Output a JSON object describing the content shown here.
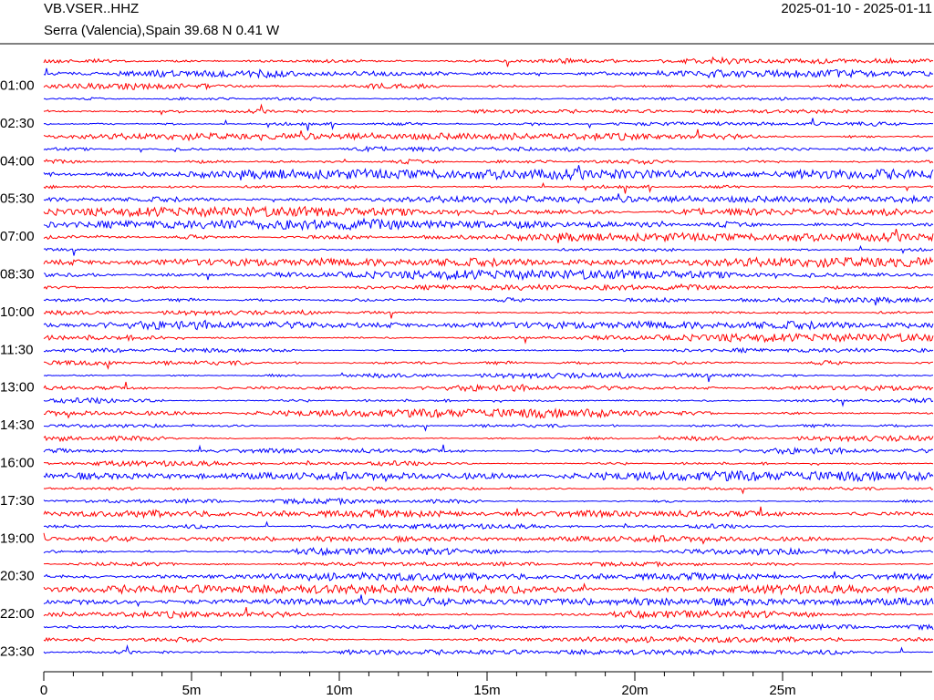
{
  "chart_data": {
    "type": "helicorder",
    "title": "VB.VSER..HHZ",
    "subtitle": "Serra (Valencia),Spain  39.68 N 0.41 W",
    "date_range": "2025-01-10 - 2025-01-11",
    "xlim": [
      0,
      30
    ],
    "xticks": [
      0,
      {
        "value": 5,
        "label": "5m"
      },
      {
        "value": 10,
        "label": "10m"
      },
      {
        "value": 15,
        "label": "15m"
      },
      {
        "value": 20,
        "label": "20m"
      },
      {
        "value": 25,
        "label": "25m"
      }
    ],
    "xminor_step": 1,
    "ylim": [
      0,
      23.5
    ],
    "trace_interval_hours": 0.5,
    "yticks": [
      {
        "value": 1,
        "label": "01:00"
      },
      {
        "value": 2.5,
        "label": "02:30"
      },
      {
        "value": 4,
        "label": "04:00"
      },
      {
        "value": 5.5,
        "label": "05:30"
      },
      {
        "value": 7,
        "label": "07:00"
      },
      {
        "value": 8.5,
        "label": "08:30"
      },
      {
        "value": 10,
        "label": "10:00"
      },
      {
        "value": 11.5,
        "label": "11:30"
      },
      {
        "value": 13,
        "label": "13:00"
      },
      {
        "value": 14.5,
        "label": "14:30"
      },
      {
        "value": 16,
        "label": "16:00"
      },
      {
        "value": 17.5,
        "label": "17:30"
      },
      {
        "value": 19,
        "label": "19:00"
      },
      {
        "value": 20.5,
        "label": "20:30"
      },
      {
        "value": 22,
        "label": "22:00"
      },
      {
        "value": 23.5,
        "label": "23:30"
      }
    ],
    "colors": [
      "#ff0000",
      "#0000ff"
    ]
  }
}
